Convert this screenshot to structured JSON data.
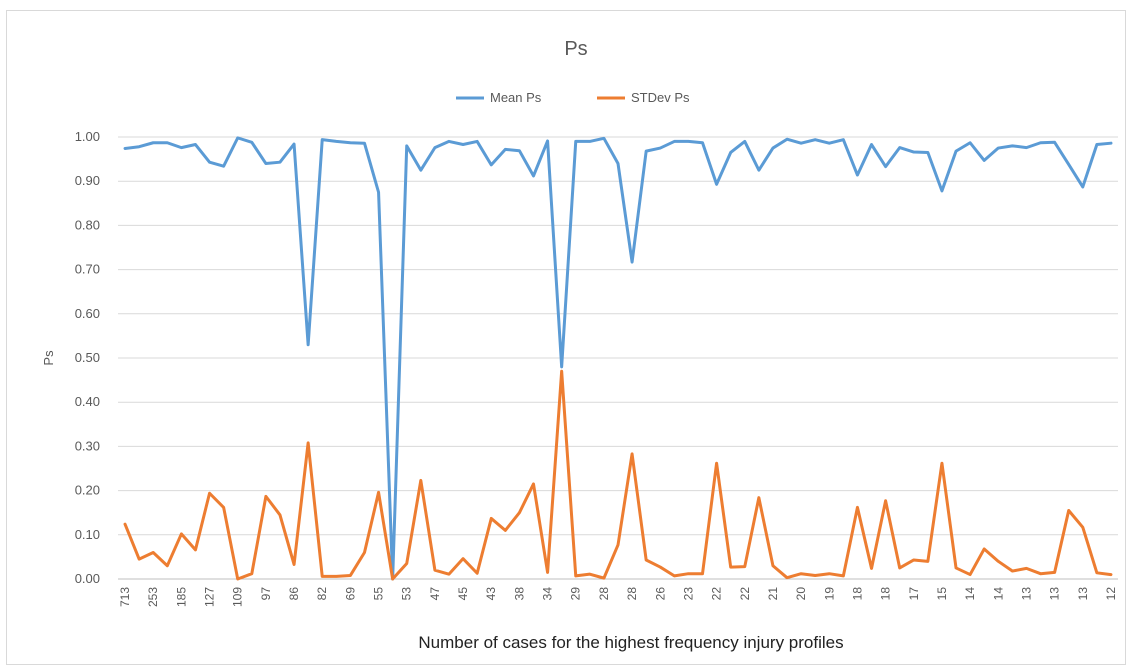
{
  "chart_data": {
    "type": "line",
    "title": "Ps",
    "xlabel": "Number  of cases for the highest frequency injury profiles",
    "ylabel": "Ps",
    "ylim": [
      0,
      1.0
    ],
    "yticks": [
      "0.00",
      "0.10",
      "0.20",
      "0.30",
      "0.40",
      "0.50",
      "0.60",
      "0.70",
      "0.80",
      "0.90",
      "1.00"
    ],
    "grid": true,
    "legend_position": "top",
    "x_labels": [
      "713",
      "253",
      "185",
      "127",
      "109",
      "97",
      "86",
      "82",
      "69",
      "55",
      "53",
      "47",
      "45",
      "43",
      "38",
      "34",
      "29",
      "28",
      "28",
      "26",
      "23",
      "22",
      "22",
      "21",
      "20",
      "19",
      "18",
      "18",
      "17",
      "15",
      "14",
      "14",
      "13",
      "13",
      "13",
      "12"
    ],
    "series": [
      {
        "name": "Mean Ps",
        "color": "#5B9BD5",
        "values": [
          0.974,
          0.978,
          0.987,
          0.987,
          0.976,
          0.983,
          0.943,
          0.934,
          0.998,
          0.988,
          0.94,
          0.943,
          0.984,
          0.53,
          0.994,
          0.99,
          0.987,
          0.986,
          0.875,
          0.0,
          0.98,
          0.925,
          0.976,
          0.99,
          0.983,
          0.99,
          0.937,
          0.972,
          0.969,
          0.912,
          0.991,
          0.48,
          0.99,
          0.99,
          0.997,
          0.94,
          0.717,
          0.968,
          0.975,
          0.99,
          0.99,
          0.987,
          0.893,
          0.965,
          0.99,
          0.925,
          0.975,
          0.995,
          0.986,
          0.994,
          0.986,
          0.994,
          0.914,
          0.983,
          0.933,
          0.976,
          0.966,
          0.965,
          0.878,
          0.968,
          0.987,
          0.947,
          0.975,
          0.98,
          0.976,
          0.987,
          0.988,
          0.938,
          0.887,
          0.983,
          0.986
        ]
      },
      {
        "name": "STDev Ps",
        "color": "#ED7D31",
        "values": [
          0.124,
          0.045,
          0.06,
          0.03,
          0.102,
          0.066,
          0.194,
          0.162,
          0.0,
          0.012,
          0.187,
          0.145,
          0.033,
          0.308,
          0.006,
          0.006,
          0.008,
          0.06,
          0.196,
          0.0,
          0.035,
          0.223,
          0.02,
          0.011,
          0.046,
          0.013,
          0.137,
          0.11,
          0.15,
          0.215,
          0.015,
          0.47,
          0.007,
          0.011,
          0.002,
          0.077,
          0.283,
          0.043,
          0.027,
          0.007,
          0.012,
          0.012,
          0.262,
          0.027,
          0.028,
          0.184,
          0.03,
          0.003,
          0.012,
          0.008,
          0.012,
          0.007,
          0.162,
          0.024,
          0.177,
          0.025,
          0.043,
          0.04,
          0.262,
          0.025,
          0.01,
          0.068,
          0.04,
          0.018,
          0.024,
          0.012,
          0.015,
          0.155,
          0.117,
          0.014,
          0.01
        ]
      }
    ]
  }
}
